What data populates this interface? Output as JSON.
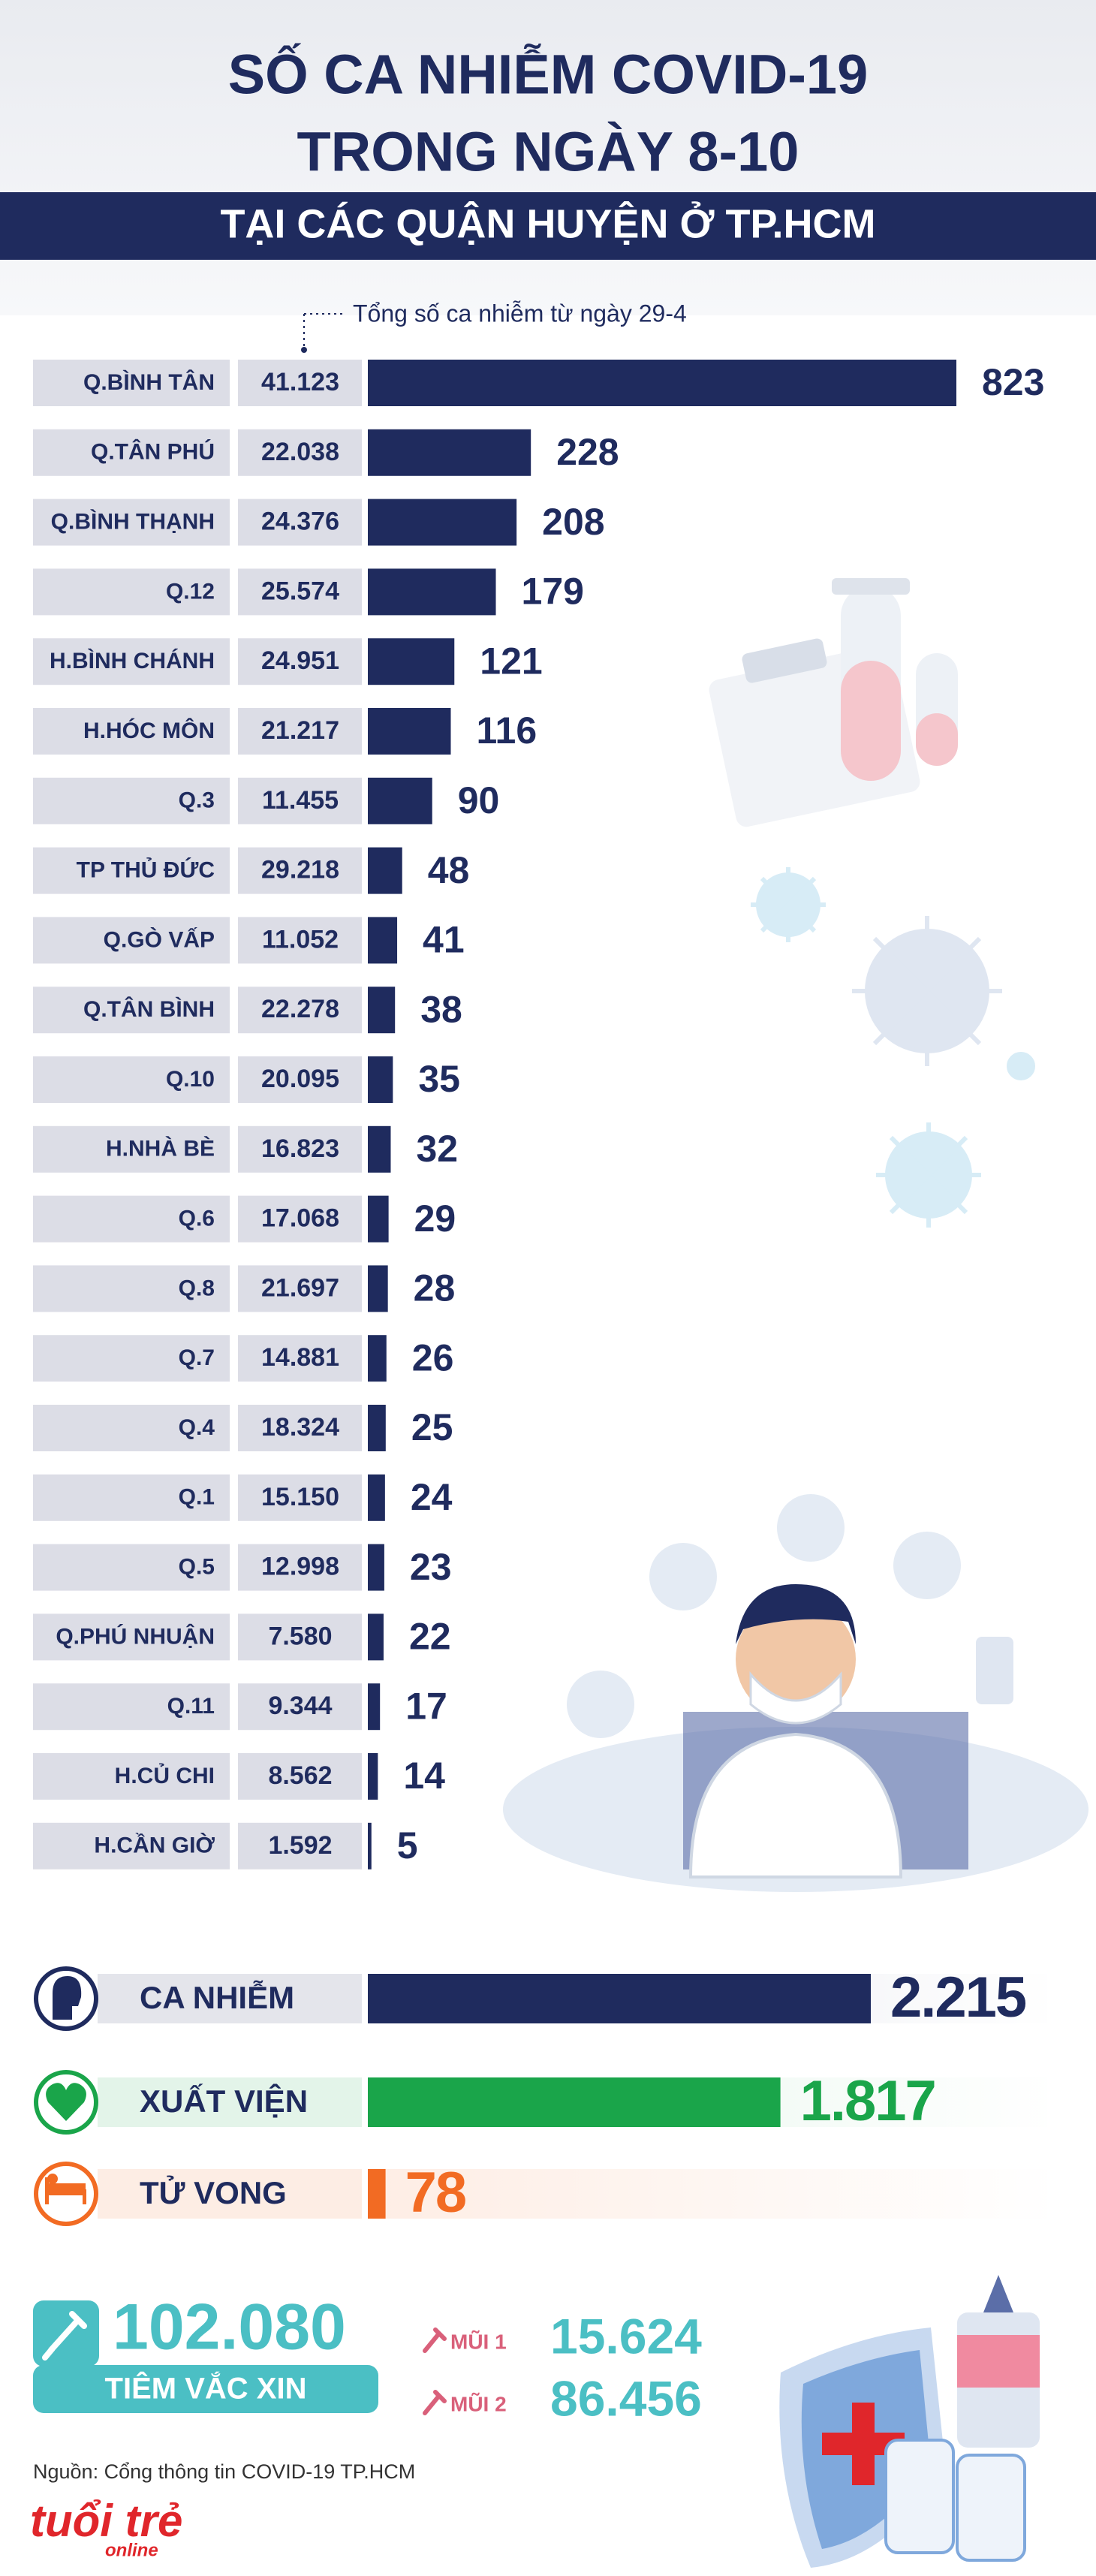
{
  "header": {
    "title_line1": "SỐ CA NHIỄM COVID-19",
    "title_line2": "TRONG NGÀY 8-10",
    "subtitle": "TẠI CÁC QUẬN HUYỆN Ở TP.HCM"
  },
  "chart_data": [
    {
      "type": "bar",
      "categories": [
        "Q.BÌNH TÂN",
        "Q.TÂN PHÚ",
        "Q.BÌNH THẠNH",
        "Q.12",
        "H.BÌNH CHÁNH",
        "H.HÓC MÔN",
        "Q.3",
        "TP THỦ ĐỨC",
        "Q.GÒ VẤP",
        "Q.TÂN BÌNH",
        "Q.10",
        "H.NHÀ BÈ",
        "Q.6",
        "Q.8",
        "Q.7",
        "Q.4",
        "Q.1",
        "Q.5",
        "Q.PHÚ NHUẬN",
        "Q.11",
        "H.CỦ CHI",
        "H.CẦN GIỜ"
      ],
      "values": [
        823,
        228,
        208,
        179,
        121,
        116,
        90,
        48,
        41,
        38,
        35,
        32,
        29,
        28,
        26,
        25,
        24,
        23,
        22,
        17,
        14,
        5
      ],
      "color": "#1f2b5e",
      "totals": {
        "name": "Tổng số ca nhiễm từ ngày 29-4",
        "values": [
          41123,
          22038,
          24376,
          25574,
          24951,
          21217,
          11455,
          29218,
          11052,
          22278,
          20095,
          16823,
          17068,
          21697,
          14881,
          18324,
          15150,
          12998,
          7580,
          9344,
          8562,
          1592
        ],
        "value_labels": [
          "41.123",
          "22.038",
          "24.376",
          "25.574",
          "24.951",
          "21.217",
          "11.455",
          "29.218",
          "11.052",
          "22.278",
          "20.095",
          "16.823",
          "17.068",
          "21.697",
          "14.881",
          "18.324",
          "15.150",
          "12.998",
          "7.580",
          "9.344",
          "8.562",
          "1.592"
        ]
      }
    },
    {
      "type": "bar",
      "categories": [
        "CA NHIỄM",
        "XUẤT VIỆN",
        "TỬ VONG"
      ],
      "values": [
        2215,
        1817,
        78
      ],
      "value_labels": [
        "2.215",
        "1.817",
        "78"
      ],
      "colors": [
        "#1f2b5e",
        "#1aa54a",
        "#f26b23"
      ]
    }
  ],
  "vaccine": {
    "total": 102080,
    "total_label": "102.080",
    "label": "TIÊM VẮC XIN",
    "doses": [
      {
        "name": "MŨI 1",
        "value": 15624,
        "value_label": "15.624"
      },
      {
        "name": "MŨI 2",
        "value": 86456,
        "value_label": "86.456"
      }
    ]
  },
  "source": "Nguồn: Cổng thông tin COVID-19 TP.HCM",
  "logo": {
    "main": "tuổi trẻ",
    "sub": "online"
  }
}
